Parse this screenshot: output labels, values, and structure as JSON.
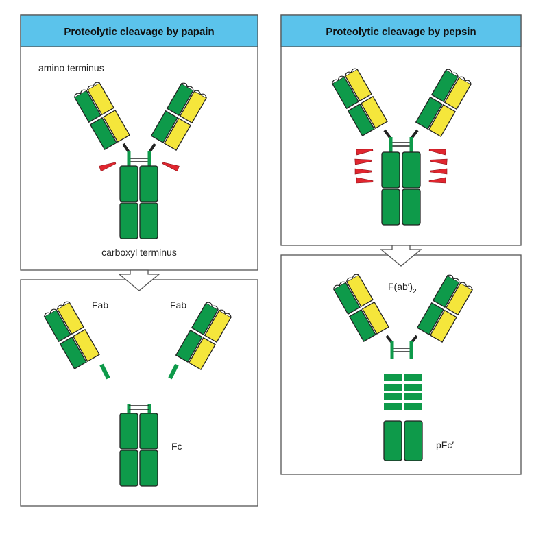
{
  "colors": {
    "header_fill": "#5bc3eb",
    "heavy_chain": "#0e9a4a",
    "light_chain": "#f5e63b",
    "cleavage": "#e0262f",
    "outline": "#222222"
  },
  "papain": {
    "title": "Proteolytic cleavage by papain",
    "amino_label": "amino terminus",
    "carboxyl_label": "carboxyl terminus",
    "fab_left_label": "Fab",
    "fab_right_label": "Fab",
    "fc_label": "Fc"
  },
  "pepsin": {
    "title": "Proteolytic cleavage by pepsin",
    "fab2_label": "F(ab′)",
    "fab2_sub": "2",
    "pfc_label": "pFc′"
  }
}
